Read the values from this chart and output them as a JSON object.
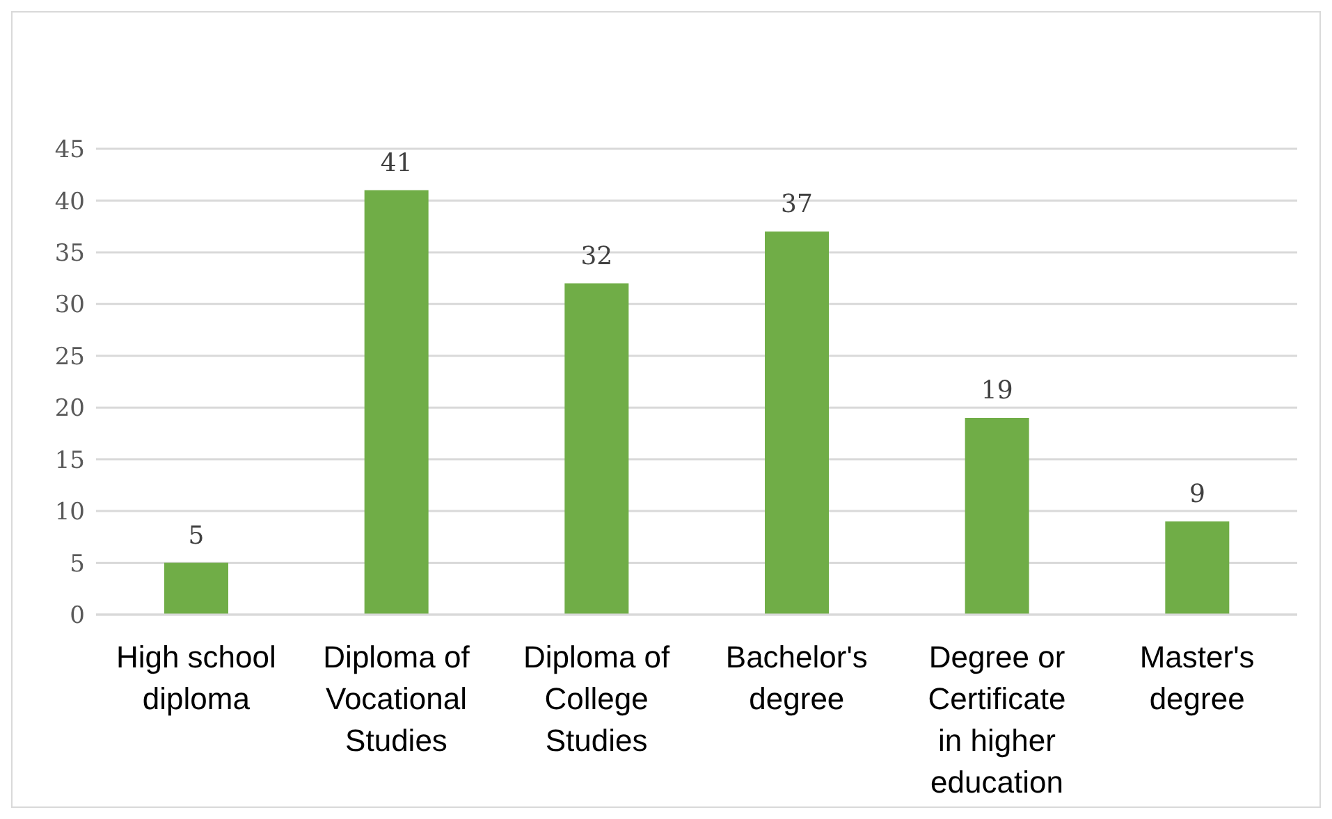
{
  "chart_data": {
    "type": "bar",
    "categories": [
      "High school diploma",
      "Diploma of Vocational Studies",
      "Diploma of College Studies",
      "Bachelor's degree",
      "Degree or Certificate in higher education",
      "Master's degree"
    ],
    "values": [
      5,
      41,
      32,
      37,
      19,
      9
    ],
    "color": "#70ad47",
    "ylim": [
      0,
      45
    ],
    "yticks": [
      0,
      5,
      10,
      15,
      20,
      25,
      30,
      35,
      40,
      45
    ],
    "grid": "y",
    "data_labels": true
  }
}
